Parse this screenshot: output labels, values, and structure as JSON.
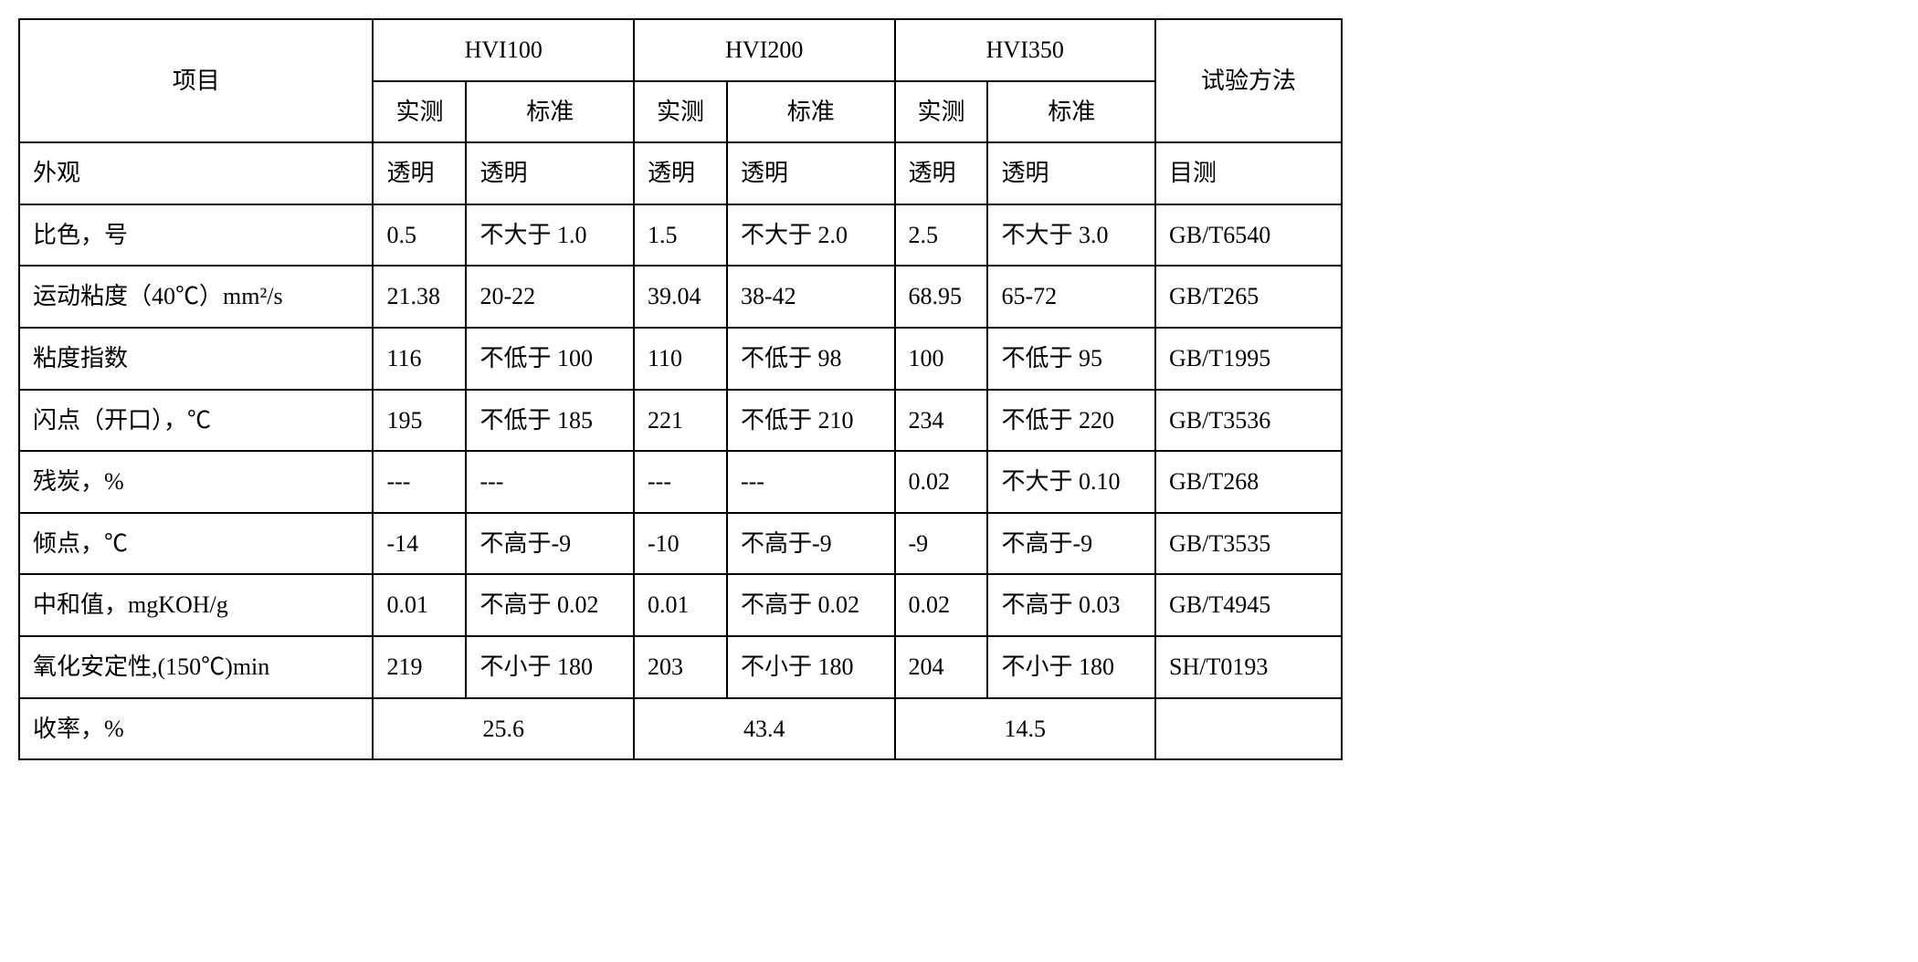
{
  "table": {
    "type": "table",
    "columns": {
      "item": "项目",
      "grade1": "HVI100",
      "grade2": "HVI200",
      "grade3": "HVI350",
      "test_method": "试验方法",
      "measured": "实测",
      "standard": "标准"
    },
    "rows": [
      {
        "item": "外观",
        "g1_measured": "透明",
        "g1_standard": "透明",
        "g2_measured": "透明",
        "g2_standard": "透明",
        "g3_measured": "透明",
        "g3_standard": "透明",
        "method": "目测"
      },
      {
        "item": "比色，号",
        "g1_measured": "0.5",
        "g1_standard": "不大于 1.0",
        "g2_measured": "1.5",
        "g2_standard": "不大于 2.0",
        "g3_measured": "2.5",
        "g3_standard": "不大于 3.0",
        "method": "GB/T6540"
      },
      {
        "item": "运动粘度（40℃）mm²/s",
        "g1_measured": "21.38",
        "g1_standard": "20-22",
        "g2_measured": "39.04",
        "g2_standard": "38-42",
        "g3_measured": "68.95",
        "g3_standard": "65-72",
        "method": "GB/T265"
      },
      {
        "item": "粘度指数",
        "g1_measured": "116",
        "g1_standard": "不低于 100",
        "g2_measured": "110",
        "g2_standard": "不低于 98",
        "g3_measured": "100",
        "g3_standard": "不低于 95",
        "method": "GB/T1995"
      },
      {
        "item": "闪点（开口），℃",
        "g1_measured": "195",
        "g1_standard": "不低于 185",
        "g2_measured": "221",
        "g2_standard": "不低于 210",
        "g3_measured": "234",
        "g3_standard": "不低于 220",
        "method": "GB/T3536"
      },
      {
        "item": "残炭，%",
        "g1_measured": "---",
        "g1_standard": "---",
        "g2_measured": "---",
        "g2_standard": "---",
        "g3_measured": "0.02",
        "g3_standard": "不大于 0.10",
        "method": "GB/T268"
      },
      {
        "item": "倾点，℃",
        "g1_measured": "-14",
        "g1_standard": "不高于-9",
        "g2_measured": "-10",
        "g2_standard": "不高于-9",
        "g3_measured": "-9",
        "g3_standard": "不高于-9",
        "method": "GB/T3535"
      },
      {
        "item": "中和值，mgKOH/g",
        "g1_measured": "0.01",
        "g1_standard": "不高于 0.02",
        "g2_measured": "0.01",
        "g2_standard": "不高于 0.02",
        "g3_measured": "0.02",
        "g3_standard": "不高于 0.03",
        "method": "GB/T4945"
      },
      {
        "item": "氧化安定性,(150℃)min",
        "g1_measured": "219",
        "g1_standard": "不小于 180",
        "g2_measured": "203",
        "g2_standard": "不小于 180",
        "g3_measured": "204",
        "g3_standard": "不小于 180",
        "method": "SH/T0193"
      }
    ],
    "yield_row": {
      "item": "收率，%",
      "g1": "25.6",
      "g2": "43.4",
      "g3": "14.5",
      "method": ""
    },
    "styling": {
      "border_color": "#000000",
      "border_width": 2,
      "background_color": "#ffffff",
      "text_color": "#000000",
      "font_size": 26,
      "cell_padding": 12,
      "font_family": "SimSun"
    }
  }
}
